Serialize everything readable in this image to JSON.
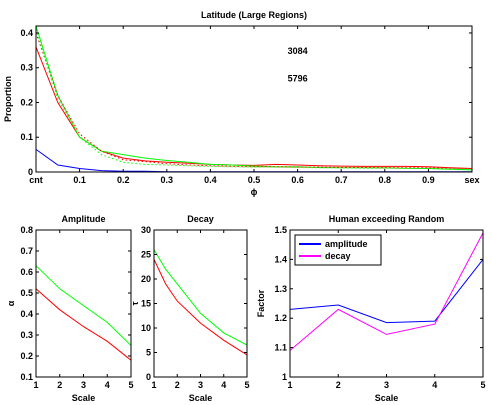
{
  "chart_data": [
    {
      "type": "line",
      "title": "Latitude (Large Regions)",
      "ylabel": "Proportion",
      "xlim": [
        0,
        1
      ],
      "ylim": [
        0,
        0.42
      ],
      "x_ticks": [
        0,
        0.1,
        0.2,
        0.3,
        0.4,
        0.5,
        0.6,
        0.7,
        0.8,
        0.9,
        1
      ],
      "x_tick_labels": [
        "cnt",
        "0.1",
        "0.2",
        "0.3",
        "0.4",
        "0.5",
        "0.6",
        "0.7",
        "0.8",
        "0.9",
        "sex"
      ],
      "y_ticks": [
        0,
        0.1,
        0.2,
        0.3,
        0.4
      ],
      "y_tick_labels": [
        "0",
        "0.1",
        "0.2",
        "0.3",
        "0.4"
      ],
      "x_marker_symbol": "ϕ",
      "annotations": [
        {
          "text": "3084",
          "x": 0.6,
          "y": 0.34
        },
        {
          "text": "5796",
          "x": 0.6,
          "y": 0.26
        }
      ],
      "x": [
        0,
        0.05,
        0.1,
        0.15,
        0.2,
        0.25,
        0.3,
        0.35,
        0.4,
        0.45,
        0.5,
        0.55,
        0.6,
        0.65,
        0.7,
        0.75,
        0.8,
        0.85,
        0.9,
        0.95,
        1
      ],
      "series": [
        {
          "color": "#ff0000",
          "style": "solid",
          "values": [
            0.36,
            0.2,
            0.1,
            0.06,
            0.04,
            0.032,
            0.028,
            0.025,
            0.022,
            0.02,
            0.019,
            0.022,
            0.02,
            0.018,
            0.017,
            0.016,
            0.016,
            0.016,
            0.015,
            0.012,
            0.01
          ]
        },
        {
          "color": "#00ff00",
          "style": "solid",
          "values": [
            0.42,
            0.22,
            0.1,
            0.06,
            0.05,
            0.04,
            0.033,
            0.028,
            0.022,
            0.02,
            0.017,
            0.015,
            0.015,
            0.013,
            0.012,
            0.012,
            0.012,
            0.011,
            0.01,
            0.008,
            0.006
          ]
        },
        {
          "color": "#ff0000",
          "style": "dotted",
          "values": [
            0.4,
            0.22,
            0.11,
            0.06,
            0.035,
            0.03,
            0.024,
            0.02,
            0.018,
            0.016,
            0.015,
            0.015,
            0.014,
            0.014,
            0.013,
            0.013,
            0.012,
            0.012,
            0.012,
            0.011,
            0.01
          ]
        },
        {
          "color": "#00ff00",
          "style": "dotted",
          "values": [
            0.41,
            0.21,
            0.1,
            0.05,
            0.028,
            0.022,
            0.02,
            0.018,
            0.016,
            0.015,
            0.014,
            0.014,
            0.013,
            0.012,
            0.012,
            0.011,
            0.011,
            0.01,
            0.01,
            0.009,
            0.008
          ]
        },
        {
          "color": "#0000ff",
          "style": "solid",
          "values": [
            0.065,
            0.02,
            0.01,
            0.004,
            0.002,
            0.002,
            0.001,
            0.001,
            0.001,
            0.001,
            0.001,
            0.001,
            0.001,
            0.001,
            0.001,
            0.001,
            0.001,
            0.001,
            0.001,
            0.001,
            0.001
          ]
        }
      ]
    },
    {
      "type": "line",
      "title": "Amplitude",
      "xlabel": "Scale",
      "ylabel": "α",
      "xlim": [
        1,
        5
      ],
      "ylim": [
        0.1,
        0.8
      ],
      "x_ticks": [
        1,
        2,
        3,
        4,
        5
      ],
      "y_ticks": [
        0.1,
        0.2,
        0.3,
        0.4,
        0.5,
        0.6,
        0.7,
        0.8
      ],
      "x": [
        1,
        2,
        3,
        4,
        5
      ],
      "series": [
        {
          "color": "#00ff00",
          "style": "solid",
          "values": [
            0.63,
            0.52,
            0.44,
            0.36,
            0.25
          ]
        },
        {
          "color": "#ff0000",
          "style": "solid",
          "values": [
            0.52,
            0.42,
            0.34,
            0.27,
            0.18
          ]
        }
      ]
    },
    {
      "type": "line",
      "title": "Decay",
      "xlabel": "Scale",
      "ylabel": "τ",
      "xlim": [
        1,
        5
      ],
      "ylim": [
        0,
        30
      ],
      "x_ticks": [
        1,
        2,
        3,
        4,
        5
      ],
      "y_ticks": [
        0,
        5,
        10,
        15,
        20,
        25,
        30
      ],
      "x": [
        1,
        1.5,
        2,
        3,
        4,
        5
      ],
      "series": [
        {
          "color": "#00ff00",
          "style": "solid",
          "values": [
            26,
            22,
            19,
            13,
            9,
            6.5
          ]
        },
        {
          "color": "#ff0000",
          "style": "solid",
          "values": [
            24,
            19,
            15.5,
            11,
            7.5,
            4.5
          ]
        }
      ]
    },
    {
      "type": "line",
      "title": "Human exceeding Random",
      "xlabel": "Scale",
      "ylabel": "Factor",
      "xlim": [
        1,
        5
      ],
      "ylim": [
        1,
        1.5
      ],
      "x_ticks": [
        1,
        2,
        3,
        4,
        5
      ],
      "y_ticks": [
        1,
        1.1,
        1.2,
        1.3,
        1.4,
        1.5
      ],
      "legend_position": "top-left",
      "x": [
        1,
        2,
        3,
        4,
        5
      ],
      "series": [
        {
          "name": "amplitude",
          "color": "#0000ff",
          "style": "solid",
          "values": [
            1.23,
            1.245,
            1.185,
            1.19,
            1.4
          ]
        },
        {
          "name": "decay",
          "color": "#ff00ff",
          "style": "solid",
          "values": [
            1.09,
            1.23,
            1.145,
            1.18,
            1.49
          ]
        }
      ]
    }
  ]
}
